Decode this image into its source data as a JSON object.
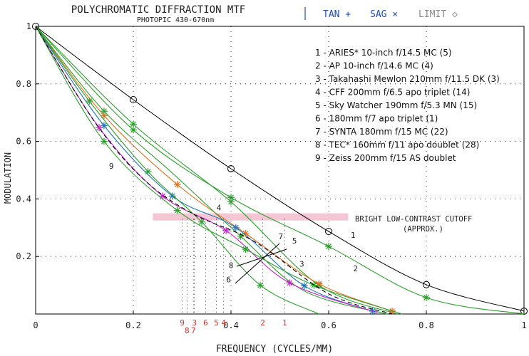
{
  "chart_data": {
    "type": "line",
    "title": "POLYCHROMATIC DIFFRACTION MTF",
    "subtitle": "PHOTOPIC 430-670nm",
    "legend_markers": [
      {
        "label": "TAN +",
        "color": "#1f4fb4"
      },
      {
        "label": "SAG ×",
        "color": "#1f4fb4"
      },
      {
        "label": "LIMIT ◇",
        "color": "#8a8a8a"
      }
    ],
    "xlabel": "FREQUENCY (CYCLES/MM)",
    "ylabel": "MODULATION",
    "xlim": [
      0,
      1
    ],
    "ylim": [
      0,
      1
    ],
    "x_ticks": [
      "0",
      "0.2",
      "0.4",
      "0.6",
      "0.8",
      "1"
    ],
    "y_ticks": [
      "0.2",
      "0.4",
      "0.6",
      "0.8",
      "1"
    ],
    "legend_entries": [
      "1 - ARIES* 10-inch f/14.5 MC (5)",
      "2 - AP 10-inch f/14.6 MC (4)",
      "3 - Takahashi Mewlon 210mm f/11.5 DK (3)",
      "4 - CFF 200mm f/6.5 apo triplet (14)",
      "5 - Sky Watcher 190mm f/5.3 MN (15)",
      "6 - 180mm f/7 apo triplet (1)",
      "7 - SYNTA 180mm f/15 MC (22)",
      "8 - TEC* 160mm f/11 apo doublet (28)",
      "9 - Zeiss 200mm f/15 AS doublet"
    ],
    "band": {
      "label_line1": "BRIGHT LOW-CONTRAST CUTOFF",
      "label_line2": "(APPROX.)",
      "y_range": [
        0.325,
        0.35
      ],
      "x_range": [
        0.24,
        0.64
      ],
      "color": "#f5c6d4"
    },
    "cutoff_labels": [
      {
        "text": "9",
        "x": 0.3
      },
      {
        "text": "3",
        "x": 0.325
      },
      {
        "text": "6",
        "x": 0.348
      },
      {
        "text": "5",
        "x": 0.37
      },
      {
        "text": "4",
        "x": 0.385
      },
      {
        "text": "8",
        "x": 0.31
      },
      {
        "text": "7",
        "x": 0.323
      },
      {
        "text": "2",
        "x": 0.465
      },
      {
        "text": "1",
        "x": 0.51
      }
    ],
    "cutoff_color": "#d03030",
    "series": [
      {
        "id": "limit",
        "color": "#000000",
        "marker": "circle",
        "points": [
          [
            0,
            1
          ],
          [
            0.2,
            0.745
          ],
          [
            0.4,
            0.505
          ],
          [
            0.6,
            0.287
          ],
          [
            0.8,
            0.102
          ],
          [
            1.0,
            0.01
          ]
        ],
        "markers_at": [
          0,
          0.2,
          0.4,
          0.6,
          0.8,
          1.0
        ]
      },
      {
        "id": "1",
        "color": "#2ca02c",
        "marker": "star",
        "points": [
          [
            0,
            1
          ],
          [
            0.2,
            0.64
          ],
          [
            0.4,
            0.405
          ],
          [
            0.6,
            0.235
          ],
          [
            0.8,
            0.057
          ],
          [
            1.0,
            0.0
          ]
        ],
        "markers_at": [
          0.2,
          0.4,
          0.6,
          0.8
        ]
      },
      {
        "id": "2",
        "color": "#2ca02c",
        "marker": "star",
        "points": [
          [
            0,
            1
          ],
          [
            0.2,
            0.66
          ],
          [
            0.4,
            0.39
          ],
          [
            0.58,
            0.1
          ],
          [
            0.74,
            0.0
          ]
        ],
        "markers_at": [
          0.2,
          0.4,
          0.58
        ]
      },
      {
        "id": "3",
        "color": "#e07020",
        "marker": "star",
        "points": [
          [
            0,
            1
          ],
          [
            0.14,
            0.69
          ],
          [
            0.29,
            0.45
          ],
          [
            0.43,
            0.28
          ],
          [
            0.58,
            0.105
          ],
          [
            0.73,
            0.01
          ]
        ],
        "markers_at": [
          0.14,
          0.29,
          0.43,
          0.58,
          0.73
        ]
      },
      {
        "id": "4",
        "color": "#2ca02c",
        "marker": "star",
        "points": [
          [
            0,
            1
          ],
          [
            0.14,
            0.705
          ],
          [
            0.28,
            0.49
          ],
          [
            0.42,
            0.27
          ],
          [
            0.55,
            0.08
          ],
          [
            0.72,
            0.0
          ]
        ],
        "markers_at": [
          0.14,
          0.42
        ]
      },
      {
        "id": "5",
        "color": "#1f77b4",
        "marker": "star",
        "points": [
          [
            0,
            1
          ],
          [
            0.14,
            0.655
          ],
          [
            0.28,
            0.41
          ],
          [
            0.41,
            0.3
          ],
          [
            0.55,
            0.098
          ],
          [
            0.69,
            0.01
          ]
        ],
        "markers_at": [
          0.14,
          0.28,
          0.41,
          0.55,
          0.69
        ]
      },
      {
        "id": "6",
        "color": "#cc22cc",
        "marker": "star",
        "points": [
          [
            0,
            1
          ],
          [
            0.13,
            0.648
          ],
          [
            0.26,
            0.41
          ],
          [
            0.39,
            0.29
          ],
          [
            0.52,
            0.108
          ],
          [
            0.7,
            0.005
          ]
        ],
        "markers_at": [
          0.13,
          0.26,
          0.39,
          0.52
        ]
      },
      {
        "id": "7",
        "color": "#2ca02c",
        "marker": "star",
        "points": [
          [
            0,
            1
          ],
          [
            0.11,
            0.74
          ],
          [
            0.23,
            0.495
          ],
          [
            0.34,
            0.32
          ],
          [
            0.46,
            0.1
          ],
          [
            0.58,
            0.0
          ]
        ],
        "markers_at": [
          0.11,
          0.23,
          0.34,
          0.46
        ]
      },
      {
        "id": "8",
        "color": "#2ca02c",
        "marker": "star",
        "points": [
          [
            0,
            1
          ],
          [
            0.14,
            0.6
          ],
          [
            0.29,
            0.36
          ],
          [
            0.43,
            0.225
          ],
          [
            0.57,
            0.1
          ],
          [
            0.75,
            0.0
          ]
        ],
        "markers_at": [
          0.14,
          0.29,
          0.43,
          0.57
        ]
      },
      {
        "id": "9",
        "color": "#000000",
        "marker": "none",
        "dash": "6,4",
        "points": [
          [
            0,
            1
          ],
          [
            0.12,
            0.67
          ],
          [
            0.22,
            0.47
          ],
          [
            0.32,
            0.35
          ],
          [
            0.45,
            0.25
          ],
          [
            0.6,
            0.07
          ],
          [
            0.73,
            0.0
          ]
        ],
        "markers_at": []
      }
    ],
    "curve_labels": [
      {
        "text": "1",
        "x": 0.65,
        "y": 0.265
      },
      {
        "text": "2",
        "x": 0.655,
        "y": 0.148
      },
      {
        "text": "3",
        "x": 0.545,
        "y": 0.165
      },
      {
        "text": "4",
        "x": 0.375,
        "y": 0.36
      },
      {
        "text": "5",
        "x": 0.53,
        "y": 0.245
      },
      {
        "text": "6",
        "x": 0.395,
        "y": 0.11
      },
      {
        "text": "7",
        "x": 0.502,
        "y": 0.26
      },
      {
        "text": "8",
        "x": 0.4,
        "y": 0.16
      },
      {
        "text": "9",
        "x": 0.155,
        "y": 0.505
      }
    ]
  }
}
